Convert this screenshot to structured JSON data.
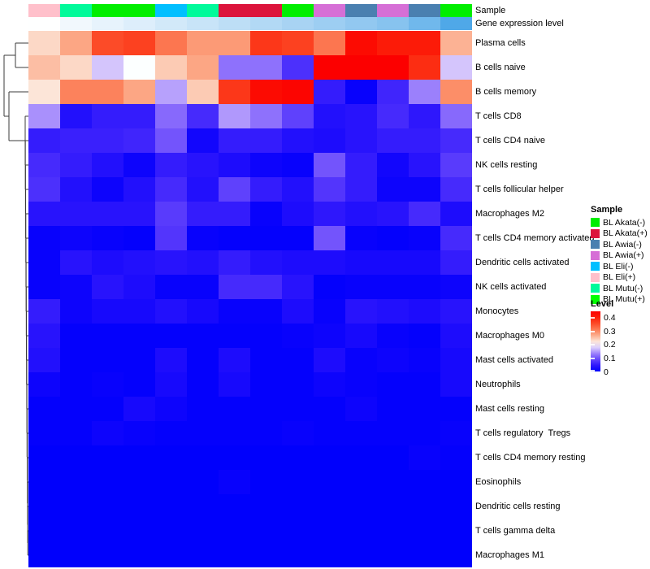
{
  "header": {
    "sample_label": "Sample",
    "expression_label": "Gene expression level"
  },
  "annotations": {
    "sample_colors": [
      "#FFC0CB",
      "#00FA9A",
      "#00EE00",
      "#00EE00",
      "#00BFFF",
      "#00FA9A",
      "#DC143C",
      "#DC143C",
      "#00EE00",
      "#D66FD6",
      "#4A80B0",
      "#D66FD6",
      "#4A80B0",
      "#00EE00"
    ],
    "expression_colors": [
      "#FEFFFF",
      "#F1F8FD",
      "#E7F3FC",
      "#DDEEFB",
      "#D2E9F9",
      "#C8E4F8",
      "#BDDEF6",
      "#B2D9F5",
      "#A8D3F3",
      "#9DCEF2",
      "#92C8F0",
      "#87C3EF",
      "#70B8EC",
      "#4FA8E8"
    ]
  },
  "chart_data": {
    "type": "heatmap",
    "n_cols": 14,
    "rows": [
      "Plasma cells",
      "B cells naive",
      "B cells memory",
      "T cells CD8",
      "T cells CD4 naive",
      "NK cells resting",
      "T cells follicular helper",
      "Macrophages M2",
      "T cells CD4 memory activated",
      "Dendritic cells activated",
      "NK cells activated",
      "Monocytes",
      "Macrophages M0",
      "Mast cells activated",
      "Neutrophils",
      "Mast cells resting",
      "T cells regulatory  Tregs",
      "T cells CD4 memory resting",
      "Eosinophils",
      "Dendritic cells resting",
      "T cells gamma delta",
      "Macrophages M1"
    ],
    "values": [
      [
        0.23,
        0.27,
        0.35,
        0.36,
        0.31,
        0.28,
        0.28,
        0.37,
        0.36,
        0.31,
        0.42,
        0.4,
        0.4,
        0.26
      ],
      [
        0.25,
        0.23,
        0.17,
        0.2,
        0.24,
        0.27,
        0.12,
        0.12,
        0.07,
        0.44,
        0.44,
        0.44,
        0.38,
        0.17
      ],
      [
        0.22,
        0.3,
        0.3,
        0.27,
        0.15,
        0.24,
        0.37,
        0.42,
        0.43,
        0.05,
        0.01,
        0.06,
        0.13,
        0.29
      ],
      [
        0.14,
        0.035,
        0.05,
        0.05,
        0.115,
        0.065,
        0.145,
        0.12,
        0.085,
        0.035,
        0.04,
        0.065,
        0.045,
        0.115
      ],
      [
        0.05,
        0.055,
        0.055,
        0.06,
        0.1,
        0.02,
        0.05,
        0.05,
        0.035,
        0.03,
        0.04,
        0.05,
        0.05,
        0.065
      ],
      [
        0.065,
        0.05,
        0.035,
        0.015,
        0.05,
        0.04,
        0.03,
        0.015,
        0.01,
        0.1,
        0.05,
        0.02,
        0.04,
        0.08
      ],
      [
        0.07,
        0.035,
        0.015,
        0.035,
        0.065,
        0.035,
        0.085,
        0.05,
        0.035,
        0.075,
        0.05,
        0.015,
        0.015,
        0.065
      ],
      [
        0.04,
        0.04,
        0.04,
        0.04,
        0.08,
        0.05,
        0.05,
        0.01,
        0.03,
        0.045,
        0.035,
        0.04,
        0.065,
        0.03
      ],
      [
        0.01,
        0.015,
        0.01,
        0.005,
        0.075,
        0.01,
        0.005,
        0.005,
        0.005,
        0.1,
        0.01,
        0.005,
        0.01,
        0.065
      ],
      [
        0.01,
        0.04,
        0.03,
        0.035,
        0.04,
        0.035,
        0.05,
        0.035,
        0.03,
        0.03,
        0.025,
        0.025,
        0.025,
        0.05
      ],
      [
        0.01,
        0.015,
        0.04,
        0.03,
        0.01,
        0.01,
        0.065,
        0.065,
        0.04,
        0.005,
        0.01,
        0.01,
        0.01,
        0.015
      ],
      [
        0.05,
        0.015,
        0.025,
        0.025,
        0.035,
        0.025,
        0.01,
        0.01,
        0.03,
        0.01,
        0.04,
        0.035,
        0.03,
        0.04
      ],
      [
        0.04,
        0.005,
        0.005,
        0.005,
        0.005,
        0.005,
        0.005,
        0.005,
        0.01,
        0.015,
        0.025,
        0.01,
        0.005,
        0.03
      ],
      [
        0.035,
        0.005,
        0.005,
        0.005,
        0.03,
        0.005,
        0.03,
        0.005,
        0.005,
        0.03,
        0.01,
        0.015,
        0.01,
        0.025
      ],
      [
        0.015,
        0.005,
        0.01,
        0.005,
        0.025,
        0.005,
        0.025,
        0.005,
        0.005,
        0.015,
        0.01,
        0.005,
        0.005,
        0.025
      ],
      [
        0.005,
        0.005,
        0.005,
        0.025,
        0.015,
        0.005,
        0.005,
        0.005,
        0.005,
        0.005,
        0.015,
        0.005,
        0.005,
        0.005
      ],
      [
        0.005,
        0.005,
        0.015,
        0.01,
        0.005,
        0.005,
        0.005,
        0.005,
        0.01,
        0.005,
        0.005,
        0.005,
        0.005,
        0.01
      ],
      [
        0,
        0,
        0,
        0,
        0,
        0,
        0,
        0,
        0,
        0,
        0,
        0,
        0.01,
        0.005
      ],
      [
        0,
        0,
        0,
        0,
        0,
        0,
        0.01,
        0,
        0,
        0,
        0,
        0,
        0,
        0
      ],
      [
        0,
        0,
        0,
        0,
        0,
        0,
        0,
        0,
        0,
        0,
        0,
        0,
        0,
        0
      ],
      [
        0,
        0,
        0,
        0,
        0,
        0,
        0,
        0,
        0,
        0,
        0,
        0,
        0,
        0
      ],
      [
        0,
        0,
        0,
        0,
        0,
        0,
        0,
        0,
        0,
        0,
        0,
        0,
        0,
        0
      ]
    ],
    "color_scale": {
      "min": 0,
      "mid": 0.2,
      "max": 0.44,
      "min_color": "#0000FC",
      "mid_color": "#FFFFFF",
      "max_color": "#FC1400"
    }
  },
  "legend_sample": {
    "title": "Sample",
    "items": [
      {
        "label": "BL Akata(-)",
        "color": "#00EE00"
      },
      {
        "label": "BL Akata(+)",
        "color": "#DC143C"
      },
      {
        "label": "BL Awia(-)",
        "color": "#4A80B0"
      },
      {
        "label": "BL Awia(+)",
        "color": "#D66FD6"
      },
      {
        "label": "BL Eli(-)",
        "color": "#00BFFF"
      },
      {
        "label": "BL Eli(+)",
        "color": "#FFC0CB"
      },
      {
        "label": "BL Mutu(-)",
        "color": "#00FA9A"
      },
      {
        "label": "BL Mutu(+)",
        "color": "#00FF00"
      }
    ]
  },
  "legend_level": {
    "title": "Level",
    "ticks": [
      "0.4",
      "0.3",
      "0.2",
      "0.1",
      "0"
    ],
    "tick_values": [
      0.4,
      0.3,
      0.2,
      0.1,
      0
    ]
  }
}
